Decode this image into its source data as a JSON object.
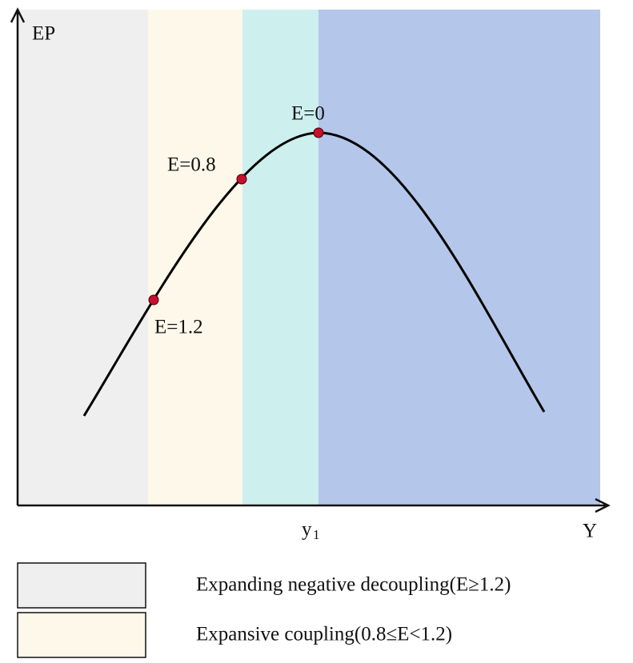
{
  "axes": {
    "y_label": "EP",
    "x_label": "Y",
    "x_mark": {
      "main": "y",
      "sub": "1"
    }
  },
  "points": [
    {
      "label": "E=1.2"
    },
    {
      "label": "E=0.8"
    },
    {
      "label": "E=0"
    }
  ],
  "legend": [
    {
      "label": "Expanding negative decoupling(E≥1.2)"
    },
    {
      "label": "Expansive coupling(0.8≤E<1.2)"
    }
  ]
}
